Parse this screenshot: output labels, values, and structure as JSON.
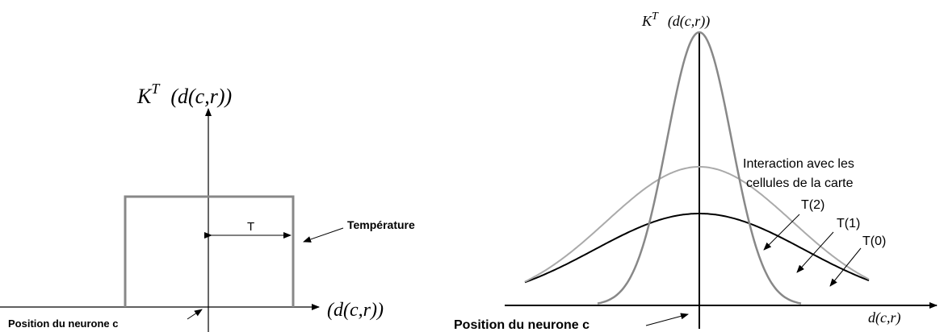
{
  "left": {
    "y_label": {
      "symbol": "K",
      "superscript": "T",
      "argument": "(d(c,r))"
    },
    "annotation": "Température",
    "width_label": "T",
    "x_label": "(d(c,r))",
    "origin_label": "Position du neurone c"
  },
  "right": {
    "y_label": {
      "symbol": "K",
      "superscript": "T",
      "argument": "(d(c,r))"
    },
    "annotation": [
      "Interaction avec les",
      "cellules de la carte"
    ],
    "curve_labels": [
      "T(2)",
      "T(1)",
      "T(0)"
    ],
    "x_label": "d(c,r)",
    "origin_label": "Position du neurone c"
  }
}
